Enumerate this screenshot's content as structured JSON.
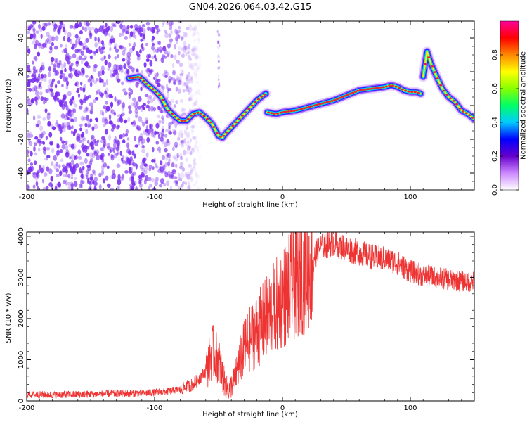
{
  "title": "GN04.2026.064.03.42.G15",
  "colors": {
    "snr_line": "#ee3333",
    "noise_dots": "#7a2cf0",
    "ridge_core": "#e8243a",
    "frame": "#000000"
  },
  "chart_data": [
    {
      "type": "heatmap",
      "name": "spectrogram",
      "xlabel": "Height of straight line (km)",
      "ylabel": "Frequency (Hz)",
      "xlim": [
        -200,
        150
      ],
      "ylim": [
        -50,
        50
      ],
      "xticks": [
        {
          "v": -200,
          "label": "-200"
        },
        {
          "v": -100,
          "label": "-100"
        },
        {
          "v": 0,
          "label": "0"
        },
        {
          "v": 100,
          "label": "100"
        }
      ],
      "yticks": [
        {
          "v": -40,
          "label": "-40"
        },
        {
          "v": -20,
          "label": "-20"
        },
        {
          "v": 0,
          "label": "0"
        },
        {
          "v": 20,
          "label": "20"
        },
        {
          "v": 40,
          "label": "40"
        }
      ],
      "colorbar": {
        "label": "Normalized spectral amplitude",
        "range": [
          0,
          1
        ],
        "ticks": [
          {
            "v": 0.0,
            "label": "0.0"
          },
          {
            "v": 0.2,
            "label": "0.2"
          },
          {
            "v": 0.4,
            "label": "0.4"
          },
          {
            "v": 0.6,
            "label": "0.6"
          },
          {
            "v": 0.8,
            "label": "0.8"
          }
        ],
        "stops": [
          "#ffffff",
          "#cc88ff",
          "#6600cc",
          "#0000ff",
          "#00ccff",
          "#00ff66",
          "#88ff00",
          "#ffff00",
          "#ff8800",
          "#ff0000",
          "#ff0099"
        ]
      },
      "noise_region": [
        -200,
        -78
      ],
      "ridge": [
        {
          "segment": [
            [
              -120,
              16
            ],
            [
              -112,
              17
            ],
            [
              -105,
              12
            ],
            [
              -100,
              9
            ],
            [
              -95,
              5
            ],
            [
              -90,
              -2
            ],
            [
              -85,
              -6
            ],
            [
              -80,
              -9
            ],
            [
              -75,
              -9
            ],
            [
              -70,
              -5
            ],
            [
              -65,
              -4
            ],
            [
              -60,
              -7
            ],
            [
              -55,
              -11
            ],
            [
              -50,
              -18
            ],
            [
              -47,
              -19
            ],
            [
              -45,
              -17
            ],
            [
              -40,
              -13
            ],
            [
              -35,
              -9
            ],
            [
              -30,
              -5
            ],
            [
              -25,
              -1
            ],
            [
              -20,
              3
            ],
            [
              -15,
              6
            ],
            [
              -13,
              7
            ]
          ]
        },
        {
          "segment": [
            [
              -12,
              -4
            ],
            [
              -5,
              -5
            ],
            [
              0,
              -4
            ],
            [
              10,
              -3
            ],
            [
              20,
              -1
            ],
            [
              30,
              1
            ],
            [
              40,
              3
            ],
            [
              50,
              6
            ],
            [
              60,
              9
            ],
            [
              70,
              10
            ],
            [
              80,
              11
            ],
            [
              85,
              12
            ],
            [
              90,
              11
            ],
            [
              95,
              9
            ],
            [
              100,
              8
            ],
            [
              105,
              8
            ],
            [
              108,
              7
            ]
          ]
        },
        {
          "segment": [
            [
              110,
              17
            ],
            [
              113,
              32
            ],
            [
              116,
              25
            ],
            [
              120,
              18
            ],
            [
              125,
              10
            ],
            [
              130,
              5
            ],
            [
              135,
              2
            ],
            [
              140,
              -3
            ],
            [
              145,
              -5
            ],
            [
              150,
              -8
            ]
          ]
        }
      ]
    },
    {
      "type": "line",
      "name": "snr",
      "xlabel": "Height of straight line (km)",
      "ylabel": "SNR (10 * v/v)",
      "xlim": [
        -200,
        150
      ],
      "ylim": [
        0,
        4100
      ],
      "xticks": [
        {
          "v": -200,
          "label": "-200"
        },
        {
          "v": -100,
          "label": "-100"
        },
        {
          "v": 0,
          "label": "0"
        },
        {
          "v": 100,
          "label": "100"
        }
      ],
      "yticks": [
        {
          "v": 0,
          "label": "0"
        },
        {
          "v": 1000,
          "label": "1000"
        },
        {
          "v": 2000,
          "label": "2000"
        },
        {
          "v": 3000,
          "label": "3000"
        },
        {
          "v": 4000,
          "label": "4000"
        }
      ],
      "series": [
        {
          "name": "SNR",
          "x": [
            -200,
            -180,
            -160,
            -140,
            -120,
            -100,
            -90,
            -80,
            -70,
            -60,
            -55,
            -50,
            -45,
            -42,
            -38,
            -32,
            -28,
            -20,
            -10,
            0,
            10,
            20,
            30,
            40,
            50,
            60,
            70,
            80,
            90,
            100,
            110,
            120,
            130,
            140,
            150
          ],
          "y": [
            150,
            150,
            160,
            170,
            180,
            200,
            230,
            280,
            400,
            700,
            1200,
            1000,
            400,
            250,
            500,
            1100,
            1400,
            1700,
            2100,
            2500,
            2900,
            3300,
            3750,
            3850,
            3700,
            3600,
            3500,
            3450,
            3350,
            3150,
            3050,
            3000,
            2950,
            2900,
            2900
          ]
        }
      ]
    }
  ]
}
